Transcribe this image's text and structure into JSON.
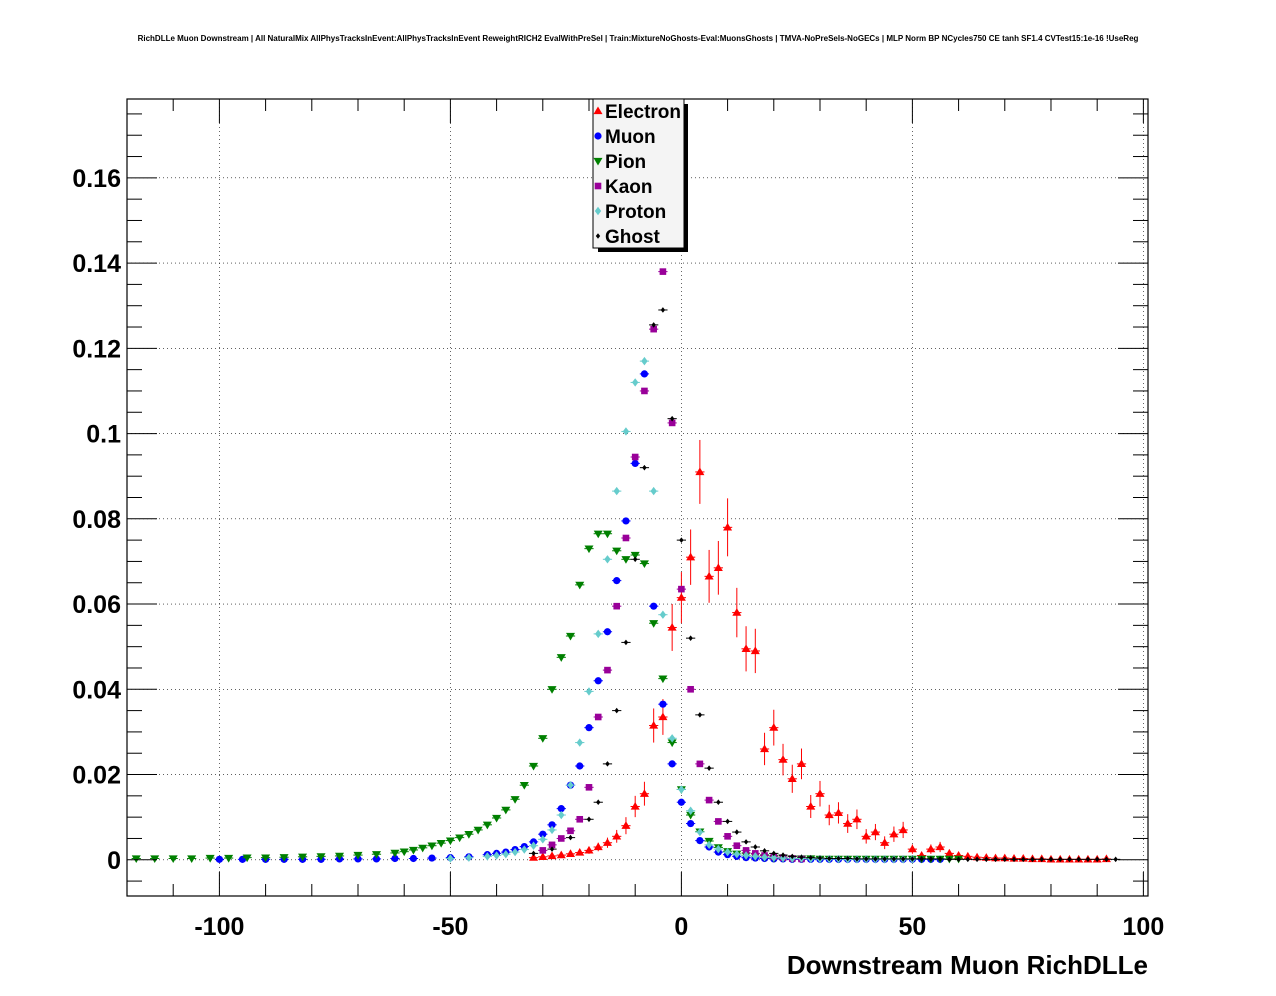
{
  "chart_data": {
    "type": "scatter",
    "title": "RichDLLe Muon Downstream | All NaturalMix AllPhysTracksInEvent:AllPhysTracksInEvent ReweightRICH2 EvalWithPreSel | Train:MixtureNoGhosts-Eval:MuonsGhosts | TMVA-NoPreSels-NoGECs | MLP Norm BP NCycles750 CE tanh SF1.4 CVTest15:1e-16 !UseReg",
    "xlabel": "Downstream Muon RichDLLe",
    "ylabel": "",
    "xlim": [
      -120,
      101
    ],
    "ylim": [
      -0.0085,
      0.1785
    ],
    "x_ticks": [
      -100,
      -50,
      0,
      50,
      100
    ],
    "x_tick_labels": [
      "-100",
      "-50",
      "0",
      "50",
      "100"
    ],
    "y_ticks": [
      0,
      0.02,
      0.04,
      0.06,
      0.08,
      0.1,
      0.12,
      0.14,
      0.16
    ],
    "y_tick_labels": [
      "0",
      "0.02",
      "0.04",
      "0.06",
      "0.08",
      "0.1",
      "0.12",
      "0.14",
      "0.16"
    ],
    "grid": true,
    "legend_position": "top-center",
    "series": [
      {
        "name": "Electron",
        "color": "#ff0000",
        "marker": "triangle-up",
        "x": [
          -32,
          -30,
          -28,
          -26,
          -24,
          -22,
          -20,
          -18,
          -16,
          -14,
          -12,
          -10,
          -8,
          -6,
          -4,
          -2,
          0,
          2,
          4,
          6,
          8,
          10,
          12,
          14,
          16,
          18,
          20,
          22,
          24,
          26,
          28,
          30,
          32,
          34,
          36,
          38,
          40,
          42,
          44,
          46,
          48,
          50,
          52,
          54,
          56,
          58,
          60,
          62,
          64,
          66,
          68,
          70,
          72,
          74,
          76,
          78,
          80,
          82,
          84,
          86,
          88,
          90,
          92
        ],
        "y": [
          0.0005,
          0.0007,
          0.0009,
          0.0011,
          0.0014,
          0.0017,
          0.0022,
          0.003,
          0.004,
          0.0055,
          0.008,
          0.0125,
          0.0155,
          0.0315,
          0.0335,
          0.0545,
          0.0615,
          0.071,
          0.091,
          0.0665,
          0.0685,
          0.078,
          0.058,
          0.0495,
          0.049,
          0.026,
          0.031,
          0.0235,
          0.019,
          0.0225,
          0.0125,
          0.0155,
          0.0105,
          0.011,
          0.0085,
          0.0095,
          0.0055,
          0.0065,
          0.004,
          0.006,
          0.007,
          0.0025,
          0.001,
          0.0025,
          0.003,
          0.0015,
          0.001,
          0.0008,
          0.0006,
          0.0005,
          0.0004,
          0.0004,
          0.0003,
          0.0003,
          0.0002,
          0.0002,
          0.0001,
          0.0001,
          0.0001,
          0.0001,
          0.0001,
          0.0001,
          0.0002
        ],
        "yerr": [
          0.0004,
          0.0004,
          0.0005,
          0.0005,
          0.0006,
          0.0007,
          0.0008,
          0.001,
          0.0012,
          0.0015,
          0.002,
          0.0025,
          0.0028,
          0.004,
          0.0042,
          0.0055,
          0.006,
          0.0065,
          0.0075,
          0.0062,
          0.0063,
          0.0068,
          0.0058,
          0.0053,
          0.0052,
          0.0038,
          0.0042,
          0.0037,
          0.0033,
          0.0036,
          0.0027,
          0.003,
          0.0024,
          0.0025,
          0.0022,
          0.0023,
          0.0017,
          0.0019,
          0.0015,
          0.0018,
          0.0019,
          0.0011,
          0.0007,
          0.0011,
          0.0012,
          0.0009,
          0.0007,
          0.0006,
          0.0005,
          0.0005,
          0.0004,
          0.0004,
          0.0003,
          0.0003,
          0.0003,
          0.0003,
          0.0002,
          0.0002,
          0.0002,
          0.0002,
          0.0002,
          0.0002,
          0.0003
        ]
      },
      {
        "name": "Muon",
        "color": "#0000ff",
        "marker": "circle",
        "x": [
          -100,
          -95,
          -90,
          -86,
          -82,
          -78,
          -74,
          -70,
          -66,
          -62,
          -58,
          -54,
          -50,
          -46,
          -42,
          -40,
          -38,
          -36,
          -34,
          -32,
          -30,
          -28,
          -26,
          -24,
          -22,
          -20,
          -18,
          -16,
          -14,
          -12,
          -10,
          -8,
          -6,
          -4,
          -2,
          0,
          2,
          4,
          6,
          8,
          10,
          12,
          14,
          16,
          18,
          20,
          22,
          24,
          26,
          28,
          30,
          32,
          34,
          36,
          38,
          40,
          42,
          44,
          46,
          48,
          50,
          52,
          54,
          56
        ],
        "y": [
          0.0001,
          0.0001,
          0.0001,
          0.0001,
          0.0001,
          0.0001,
          0.0002,
          0.0002,
          0.0002,
          0.0003,
          0.0003,
          0.0004,
          0.0005,
          0.0007,
          0.0012,
          0.0015,
          0.0018,
          0.0024,
          0.0031,
          0.0042,
          0.006,
          0.0082,
          0.012,
          0.0175,
          0.022,
          0.031,
          0.042,
          0.0535,
          0.0655,
          0.0795,
          0.093,
          0.114,
          0.0595,
          0.0365,
          0.0225,
          0.0135,
          0.0085,
          0.0045,
          0.003,
          0.0018,
          0.0012,
          0.0008,
          0.0005,
          0.0004,
          0.0003,
          0.0002,
          0.0002,
          0.0001,
          0.0001,
          0.0001,
          0.0001,
          0.0001,
          0.0001,
          0.0001,
          0.0001,
          0.0001,
          0.0001,
          0.0001,
          0.0001,
          0.0001,
          0.0001,
          0.0001,
          0.0001,
          0.0001
        ],
        "yerr": []
      },
      {
        "name": "Pion",
        "color": "#008000",
        "marker": "triangle-down",
        "x": [
          -118,
          -114,
          -110,
          -106,
          -102,
          -98,
          -94,
          -90,
          -86,
          -82,
          -78,
          -74,
          -70,
          -66,
          -62,
          -60,
          -58,
          -56,
          -54,
          -52,
          -50,
          -48,
          -46,
          -44,
          -42,
          -40,
          -38,
          -36,
          -34,
          -32,
          -30,
          -28,
          -26,
          -24,
          -22,
          -20,
          -18,
          -16,
          -14,
          -12,
          -10,
          -8,
          -6,
          -4,
          -2,
          0,
          2,
          4,
          6,
          8,
          10,
          12,
          14,
          16,
          18,
          20,
          22,
          24,
          26,
          28,
          30,
          32,
          34,
          36,
          38,
          40,
          42,
          44,
          46,
          48,
          50,
          52,
          54,
          56,
          58,
          60
        ],
        "y": [
          0.0003,
          0.0003,
          0.0003,
          0.0003,
          0.0004,
          0.0004,
          0.0005,
          0.0005,
          0.0006,
          0.0007,
          0.0008,
          0.0009,
          0.0011,
          0.0013,
          0.0016,
          0.0019,
          0.0023,
          0.0028,
          0.0033,
          0.0039,
          0.0045,
          0.0052,
          0.006,
          0.007,
          0.0082,
          0.0098,
          0.0117,
          0.0142,
          0.0175,
          0.022,
          0.0285,
          0.04,
          0.0475,
          0.0525,
          0.0645,
          0.073,
          0.0765,
          0.0765,
          0.0725,
          0.0705,
          0.0715,
          0.0695,
          0.0555,
          0.0425,
          0.0275,
          0.0165,
          0.0105,
          0.0066,
          0.0044,
          0.0029,
          0.002,
          0.0014,
          0.001,
          0.0008,
          0.0006,
          0.0004,
          0.0004,
          0.0003,
          0.0003,
          0.0003,
          0.0002,
          0.0002,
          0.0002,
          0.0002,
          0.0002,
          0.0002,
          0.0002,
          0.0002,
          0.0002,
          0.0002,
          0.0002,
          0.0002,
          0.0002,
          0.0002,
          0.0002,
          0.0002
        ],
        "x_remap": true,
        "yerr": []
      },
      {
        "name": "Kaon",
        "color": "#990099",
        "marker": "square",
        "x": [
          -30,
          -28,
          -26,
          -24,
          -22,
          -20,
          -18,
          -16,
          -14,
          -12,
          -10,
          -8,
          -6,
          -4,
          -2,
          0,
          2,
          4,
          6,
          8,
          10,
          12,
          14,
          16,
          18,
          20,
          22,
          24,
          26
        ],
        "y": [
          0.0022,
          0.0035,
          0.005,
          0.0068,
          0.0095,
          0.017,
          0.0335,
          0.0445,
          0.0595,
          0.0755,
          0.0945,
          0.11,
          0.1245,
          0.138,
          0.1025,
          0.0635,
          0.04,
          0.0225,
          0.014,
          0.009,
          0.0055,
          0.0033,
          0.0022,
          0.0015,
          0.001,
          0.0007,
          0.0005,
          0.0003,
          0.0002
        ],
        "yerr": []
      },
      {
        "name": "Proton",
        "color": "#66cccc",
        "marker": "diamond",
        "x": [
          -50,
          -46,
          -42,
          -40,
          -38,
          -36,
          -34,
          -32,
          -30,
          -28,
          -26,
          -24,
          -22,
          -20,
          -18,
          -16,
          -14,
          -12,
          -10,
          -8,
          -6,
          -4,
          -2,
          0,
          2,
          4,
          6,
          8,
          10,
          12,
          14,
          16,
          18,
          20,
          22,
          24,
          26,
          28,
          30,
          32,
          34,
          36,
          38,
          40,
          42,
          44,
          46,
          48,
          50
        ],
        "y": [
          0.0003,
          0.0005,
          0.0008,
          0.001,
          0.0013,
          0.0018,
          0.0024,
          0.0033,
          0.0048,
          0.007,
          0.0105,
          0.0175,
          0.0275,
          0.0395,
          0.053,
          0.0705,
          0.0865,
          0.1005,
          0.112,
          0.117,
          0.0865,
          0.0575,
          0.0285,
          0.0165,
          0.0115,
          0.0065,
          0.0035,
          0.0025,
          0.0018,
          0.0013,
          0.001,
          0.0008,
          0.0006,
          0.0005,
          0.0004,
          0.0003,
          0.0003,
          0.0002,
          0.0002,
          0.0002,
          0.0002,
          0.0001,
          0.0001,
          0.0001,
          0.0001,
          0.0001,
          0.0001,
          0.0001,
          0.0001
        ],
        "yerr": []
      },
      {
        "name": "Ghost",
        "color": "#000000",
        "marker": "diamond-small",
        "x": [
          -32,
          -28,
          -24,
          -20,
          -18,
          -16,
          -14,
          -12,
          -10,
          -8,
          -6,
          -4,
          -2,
          0,
          2,
          4,
          6,
          8,
          10,
          12,
          14,
          16,
          18,
          20,
          22,
          24,
          26,
          28,
          30,
          32,
          34,
          36,
          38,
          40,
          42,
          44,
          46,
          48,
          50,
          52,
          54,
          56,
          58,
          60,
          62,
          64,
          66,
          68,
          70,
          72,
          74,
          76,
          78,
          80,
          82,
          84,
          86,
          88,
          90,
          92,
          94
        ],
        "y": [
          0.0015,
          0.0025,
          0.0052,
          0.0095,
          0.0135,
          0.0225,
          0.035,
          0.051,
          0.0705,
          0.092,
          0.1255,
          0.129,
          0.1035,
          0.075,
          0.052,
          0.034,
          0.0215,
          0.0135,
          0.009,
          0.0065,
          0.0042,
          0.003,
          0.0021,
          0.0015,
          0.0011,
          0.0008,
          0.0006,
          0.0005,
          0.0004,
          0.0003,
          0.0003,
          0.0003,
          0.0002,
          0.0002,
          0.0002,
          0.0002,
          0.0002,
          0.0002,
          0.0002,
          0.0002,
          0.0002,
          0.0002,
          0.0001,
          0.0001,
          0.0001,
          0.0001,
          0.0001,
          0.0001,
          0.0001,
          0.0001,
          0.0001,
          0.0001,
          0.0001,
          0.0001,
          0.0001,
          0.0001,
          0.0001,
          0.0001,
          0.0001,
          0.0001,
          0.0001
        ],
        "yerr": []
      }
    ]
  }
}
